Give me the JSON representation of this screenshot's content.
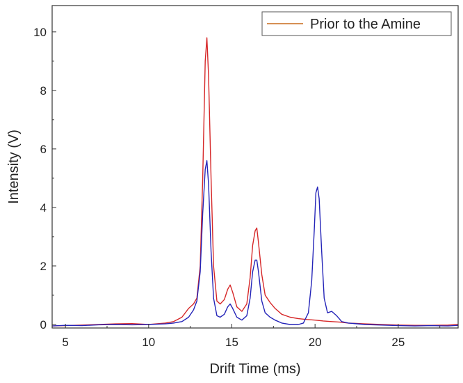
{
  "chart_data": {
    "type": "line",
    "xlabel": "Drift Time (ms)",
    "ylabel": "Intensity (V)",
    "xlim": [
      4.2,
      28.6
    ],
    "ylim": [
      -0.12,
      10.9
    ],
    "xticks": [
      5,
      10,
      15,
      20,
      25
    ],
    "yticks": [
      0,
      2,
      4,
      6,
      8,
      10
    ],
    "grid": false,
    "legend": {
      "placement": "top-right",
      "entries": [
        "Prior to the Amine"
      ]
    },
    "series": [
      {
        "name": "Prior to the Amine",
        "color": "#d62728",
        "x": [
          4.2,
          5,
          6,
          7,
          8,
          9,
          10,
          11,
          11.5,
          12,
          12.4,
          12.7,
          12.9,
          13.1,
          13.25,
          13.4,
          13.5,
          13.6,
          13.75,
          13.9,
          14.1,
          14.3,
          14.55,
          14.75,
          14.9,
          15.05,
          15.3,
          15.6,
          15.9,
          16.1,
          16.25,
          16.4,
          16.5,
          16.6,
          16.8,
          17.0,
          17.3,
          17.6,
          18,
          18.5,
          19,
          19.5,
          20,
          20.5,
          21,
          21.5,
          22,
          23,
          24,
          25,
          26,
          27,
          28,
          28.6
        ],
        "y": [
          -0.05,
          -0.04,
          -0.02,
          0.0,
          0.02,
          0.03,
          0.0,
          0.05,
          0.1,
          0.25,
          0.55,
          0.7,
          0.9,
          2.0,
          5.0,
          9.0,
          9.8,
          8.5,
          5.0,
          2.0,
          0.8,
          0.7,
          0.85,
          1.2,
          1.35,
          1.1,
          0.6,
          0.45,
          0.7,
          1.6,
          2.7,
          3.2,
          3.3,
          2.8,
          1.7,
          1.0,
          0.75,
          0.55,
          0.35,
          0.25,
          0.2,
          0.17,
          0.15,
          0.12,
          0.1,
          0.08,
          0.05,
          0.02,
          0.0,
          -0.02,
          -0.03,
          -0.03,
          -0.02,
          0.0
        ]
      },
      {
        "name": "",
        "color": "#2424b8",
        "x": [
          4.2,
          5,
          6,
          7,
          8,
          9,
          10,
          11,
          11.5,
          12,
          12.4,
          12.7,
          12.9,
          13.1,
          13.25,
          13.4,
          13.5,
          13.6,
          13.75,
          13.9,
          14.1,
          14.3,
          14.55,
          14.75,
          14.9,
          15.05,
          15.3,
          15.6,
          15.9,
          16.1,
          16.25,
          16.4,
          16.5,
          16.6,
          16.8,
          17.0,
          17.3,
          17.6,
          18,
          18.5,
          19,
          19.3,
          19.6,
          19.8,
          19.95,
          20.05,
          20.15,
          20.25,
          20.4,
          20.55,
          20.75,
          21.0,
          21.3,
          21.6,
          22,
          23,
          24,
          25,
          26,
          27,
          28,
          28.6
        ],
        "y": [
          -0.05,
          -0.03,
          -0.04,
          -0.01,
          0.0,
          -0.01,
          0.0,
          0.02,
          0.05,
          0.1,
          0.25,
          0.5,
          0.8,
          1.8,
          3.8,
          5.3,
          5.6,
          4.8,
          2.5,
          0.9,
          0.3,
          0.25,
          0.35,
          0.6,
          0.7,
          0.55,
          0.25,
          0.15,
          0.3,
          0.9,
          1.8,
          2.2,
          2.2,
          1.8,
          0.8,
          0.4,
          0.25,
          0.15,
          0.05,
          0.0,
          0.0,
          0.05,
          0.4,
          1.5,
          3.2,
          4.5,
          4.7,
          4.3,
          2.5,
          0.9,
          0.4,
          0.45,
          0.3,
          0.1,
          0.05,
          0.0,
          -0.02,
          -0.04,
          -0.05,
          -0.04,
          -0.05,
          -0.03
        ]
      }
    ]
  }
}
